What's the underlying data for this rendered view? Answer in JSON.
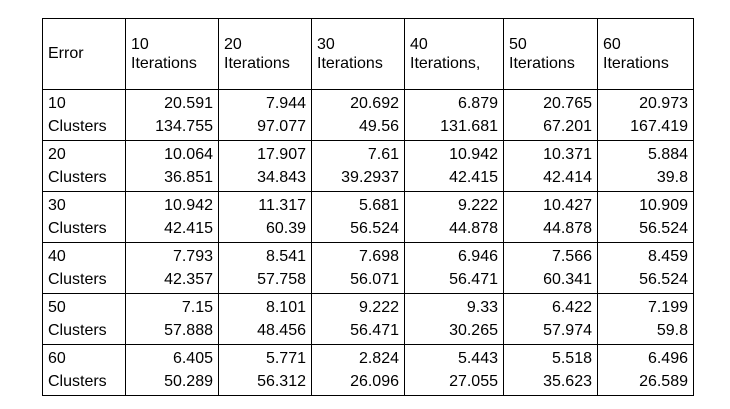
{
  "table": {
    "corner": "Error",
    "columns": [
      {
        "line1": "10",
        "line2": "Iterations"
      },
      {
        "line1": "20",
        "line2": "Iterations"
      },
      {
        "line1": "30",
        "line2": "Iterations"
      },
      {
        "line1": "40",
        "line2": "Iterations,"
      },
      {
        "line1": "50",
        "line2": "Iterations"
      },
      {
        "line1": "60",
        "line2": "Iterations"
      }
    ],
    "rows": [
      {
        "line1": "10",
        "line2": "Clusters",
        "cells": [
          [
            "20.591",
            "134.755"
          ],
          [
            "7.944",
            "97.077"
          ],
          [
            "20.692",
            "49.56"
          ],
          [
            "6.879",
            "131.681"
          ],
          [
            "20.765",
            "67.201"
          ],
          [
            "20.973",
            "167.419"
          ]
        ]
      },
      {
        "line1": "20",
        "line2": "Clusters",
        "cells": [
          [
            "10.064",
            "36.851"
          ],
          [
            "17.907",
            "34.843"
          ],
          [
            "7.61",
            "39.2937"
          ],
          [
            "10.942",
            "42.415"
          ],
          [
            "10.371",
            "42.414"
          ],
          [
            "5.884",
            "39.8"
          ]
        ]
      },
      {
        "line1": "30",
        "line2": "Clusters",
        "cells": [
          [
            "10.942",
            "42.415"
          ],
          [
            "11.317",
            "60.39"
          ],
          [
            "5.681",
            "56.524"
          ],
          [
            "9.222",
            "44.878"
          ],
          [
            "10.427",
            "44.878"
          ],
          [
            "10.909",
            "56.524"
          ]
        ]
      },
      {
        "line1": "40",
        "line2": "Clusters",
        "cells": [
          [
            "7.793",
            "42.357"
          ],
          [
            "8.541",
            "57.758"
          ],
          [
            "7.698",
            "56.071"
          ],
          [
            "6.946",
            "56.471"
          ],
          [
            "7.566",
            "60.341"
          ],
          [
            "8.459",
            "56.524"
          ]
        ]
      },
      {
        "line1": "50",
        "line2": "Clusters",
        "cells": [
          [
            "7.15",
            "57.888"
          ],
          [
            "8.101",
            "48.456"
          ],
          [
            "9.222",
            "56.471"
          ],
          [
            "9.33",
            "30.265"
          ],
          [
            "6.422",
            "57.974"
          ],
          [
            "7.199",
            "59.8"
          ]
        ]
      },
      {
        "line1": "60",
        "line2": "Clusters",
        "cells": [
          [
            "6.405",
            "50.289"
          ],
          [
            "5.771",
            "56.312"
          ],
          [
            "2.824",
            "26.096"
          ],
          [
            "5.443",
            "27.055"
          ],
          [
            "5.518",
            "35.623"
          ],
          [
            "6.496",
            "26.589"
          ]
        ]
      }
    ]
  }
}
